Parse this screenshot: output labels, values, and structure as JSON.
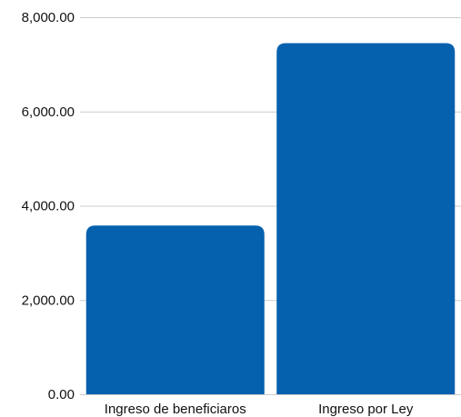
{
  "chart_data": {
    "type": "bar",
    "categories": [
      "Ingreso de beneficiaros",
      "Ingreso por Ley"
    ],
    "values": [
      3580,
      7450
    ],
    "title": "",
    "xlabel": "",
    "ylabel": "",
    "ylim": [
      0,
      8000
    ],
    "yticks": [
      0,
      2000,
      4000,
      6000,
      8000
    ],
    "ytick_labels": [
      "0.00",
      "2,000.00",
      "4,000.00",
      "6,000.00",
      "8,000.00"
    ],
    "grid": true,
    "legend": "none",
    "bar_color": "#0560ae",
    "grid_color": "#cccccc"
  }
}
